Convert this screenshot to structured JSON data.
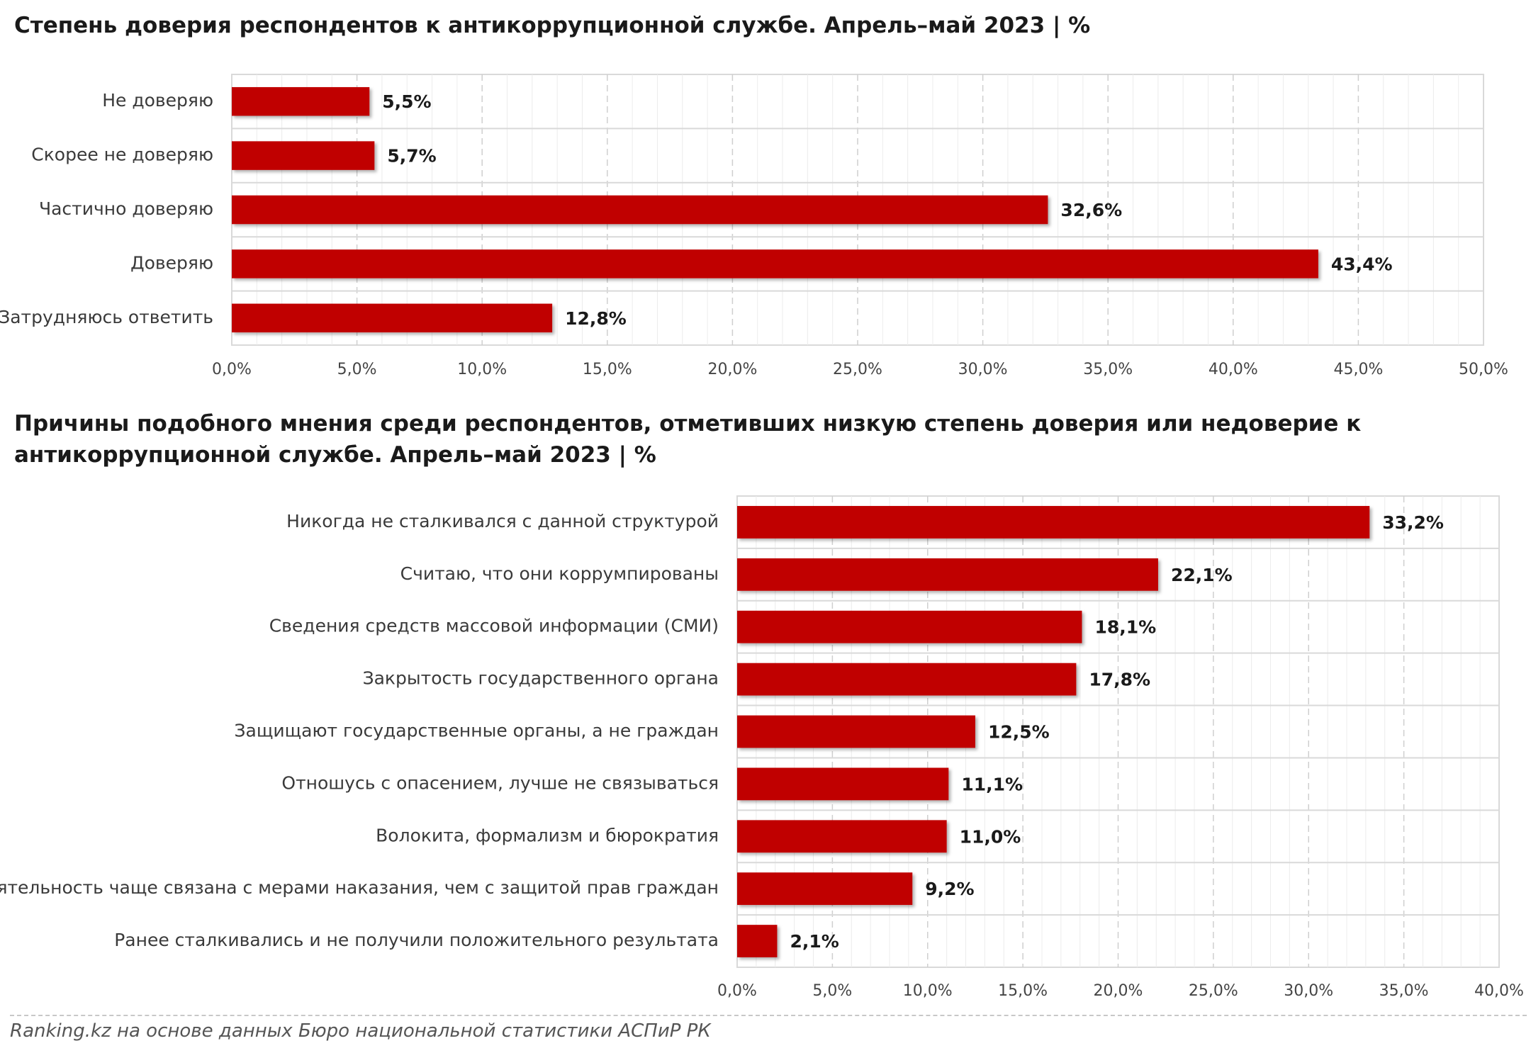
{
  "charts": {
    "trust": {
      "title": "Степень доверия респондентов к антикоррупционной службе. Апрель–май 2023 | %"
    },
    "reasons": {
      "title": "Причины подобного мнения среди респондентов, отметивших низкую степень доверия или недоверие к антикоррупционной службе. Апрель–май 2023 | %"
    }
  },
  "source": "Ranking.kz на основе данных Бюро национальной статистики АСПиР РК",
  "colors": {
    "bar": "#c00000",
    "grid": "#d9d9d9"
  },
  "chart_data": [
    {
      "type": "bar",
      "orientation": "horizontal",
      "title": "Степень доверия респондентов к антикоррупционной службе. Апрель–май 2023 | %",
      "categories": [
        "Не доверяю",
        "Скорее не доверяю",
        "Частично доверяю",
        "Доверяю",
        "Затрудняюсь ответить"
      ],
      "values": [
        5.5,
        5.7,
        32.6,
        43.4,
        12.8
      ],
      "value_labels": [
        "5,5%",
        "5,7%",
        "32,6%",
        "43,4%",
        "12,8%"
      ],
      "xlim": [
        0,
        50
      ],
      "ticks": [
        "0,0%",
        "5,0%",
        "10,0%",
        "15,0%",
        "20,0%",
        "25,0%",
        "30,0%",
        "35,0%",
        "40,0%",
        "45,0%",
        "50,0%"
      ],
      "grid": true,
      "legend": "none"
    },
    {
      "type": "bar",
      "orientation": "horizontal",
      "title": "Причины подобного мнения среди респондентов, отметивших низкую степень доверия или недоверие к антикоррупционной службе. Апрель–май 2023 | %",
      "categories": [
        "Никогда не сталкивался с данной структурой",
        "Считаю, что они коррумпированы",
        "Сведения средств массовой информации (СМИ)",
        "Закрытость государственного органа",
        "Защищают государственные органы, а не граждан",
        "Отношусь с опасением, лучше не связываться",
        "Волокита, формализм и бюрократия",
        "Деятельность чаще связана с мерами наказания, чем с защитой прав граждан",
        "Ранее сталкивались и не получили положительного результата"
      ],
      "values": [
        33.2,
        22.1,
        18.1,
        17.8,
        12.5,
        11.1,
        11.0,
        9.2,
        2.1
      ],
      "value_labels": [
        "33,2%",
        "22,1%",
        "18,1%",
        "17,8%",
        "12,5%",
        "11,1%",
        "11,0%",
        "9,2%",
        "2,1%"
      ],
      "xlim": [
        0,
        40
      ],
      "ticks": [
        "0,0%",
        "5,0%",
        "10,0%",
        "15,0%",
        "20,0%",
        "25,0%",
        "30,0%",
        "35,0%",
        "40,0%"
      ],
      "grid": true,
      "legend": "none"
    }
  ]
}
